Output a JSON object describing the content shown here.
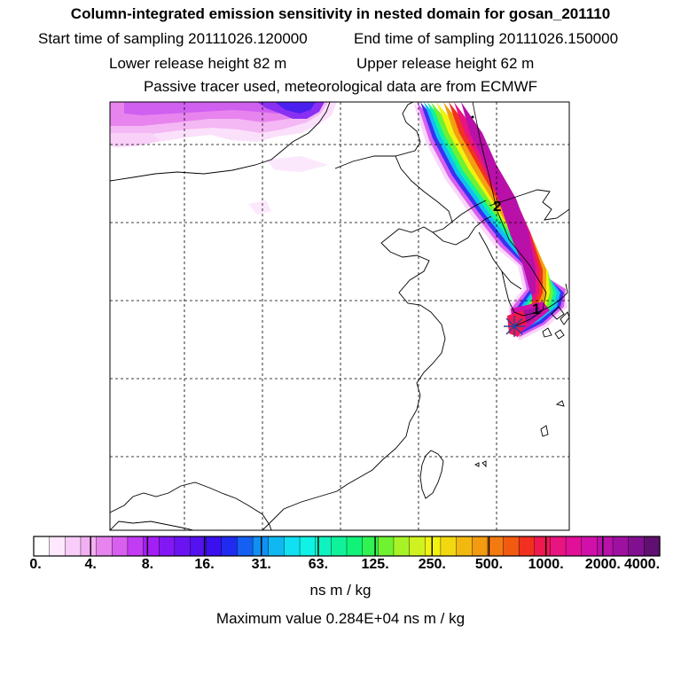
{
  "header": {
    "title": "Column-integrated emission sensitivity in nested domain for gosan_201110",
    "start_time": "Start time of sampling 20111026.120000",
    "end_time": "End time of sampling 20111026.150000",
    "lower_release": "Lower release height   82 m",
    "upper_release": "Upper release height   62 m",
    "tracer_note": "Passive tracer used, meteorological data are from ECMWF"
  },
  "map": {
    "markers": [
      {
        "label": "1"
      },
      {
        "label": "2"
      }
    ],
    "release_site_icon": "star-icon"
  },
  "colorbar": {
    "labels": [
      "0.",
      "4.",
      "8.",
      "16.",
      "31.",
      "63.",
      "125.",
      "250.",
      "500.",
      "1000.",
      "2000.",
      "4000."
    ],
    "colors": [
      "#ffffff",
      "#fde8fd",
      "#f8cdf8",
      "#f2b0f2",
      "#e884ee",
      "#d95ff0",
      "#c23cf3",
      "#a51ef5",
      "#8418f4",
      "#6a14f2",
      "#5512f0",
      "#3a10ee",
      "#1f2cf0",
      "#1460f2",
      "#1090f2",
      "#10b8f2",
      "#10e0f2",
      "#10f2e6",
      "#10f2c0",
      "#10f29a",
      "#10f278",
      "#30f250",
      "#70f230",
      "#a8f228",
      "#d0f220",
      "#f2f210",
      "#f2d810",
      "#f2b810",
      "#f29a10",
      "#f27a10",
      "#f25a10",
      "#f23020",
      "#f01850",
      "#e81480",
      "#e01098",
      "#d010a8",
      "#b810a8",
      "#9e10a0",
      "#801090",
      "#601070"
    ],
    "units": "ns m / kg",
    "max_value": "Maximum value  0.284E+04 ns m / kg"
  }
}
